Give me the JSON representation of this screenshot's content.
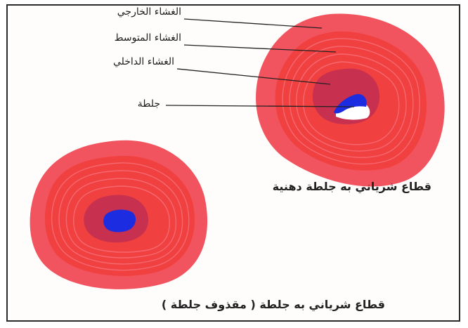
{
  "labels": {
    "outer_layer": "الغشاء الخارجي",
    "middle_layer": "الغشاء المتوسط",
    "inner_layer": "الغشاء الداخلي",
    "clot": "جلطة"
  },
  "captions": {
    "artery_with_fatty_clot": "قطاع شرياني به جلطة دهنية",
    "artery_with_embolus": "قطاع شرياني به جلطة ( مقذوف جلطة )"
  },
  "colors": {
    "outer_layer": "#f2545f",
    "middle_layer": "#f0403f",
    "ring_lines": "#f6707a",
    "inner_layer": "#c83050",
    "clot": "#1c2ce0",
    "lumen": "#ffffff",
    "leader_line": "#222222"
  }
}
